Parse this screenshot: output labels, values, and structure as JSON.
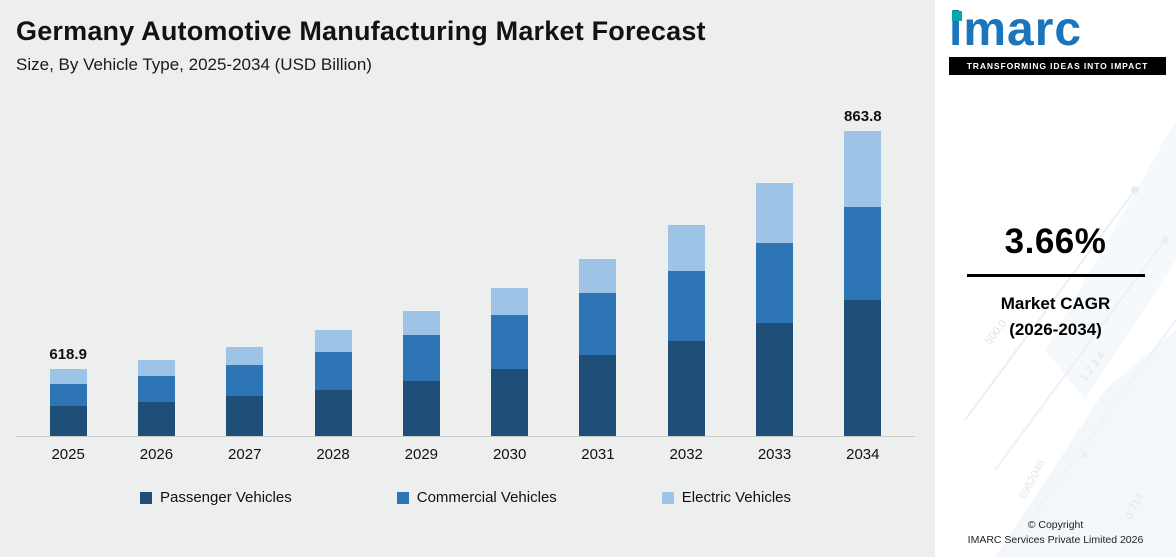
{
  "header": {
    "title": "Germany Automotive Manufacturing Market Forecast",
    "subtitle": "Size, By Vehicle Type, 2025-2034 (USD Billion)"
  },
  "chart_data": {
    "type": "bar",
    "stacked": true,
    "title": "Germany Automotive Manufacturing Market Forecast",
    "subtitle": "Size, By Vehicle Type, 2025-2034 (USD Billion)",
    "units": "USD Billion",
    "categories": [
      "2025",
      "2026",
      "2027",
      "2028",
      "2029",
      "2030",
      "2031",
      "2032",
      "2033",
      "2034"
    ],
    "series": [
      {
        "name": "Passenger Vehicles",
        "color": "#1F4E79",
        "relative_heights": [
          30,
          34,
          40,
          46,
          55,
          67,
          81,
          95,
          113,
          136
        ]
      },
      {
        "name": "Commercial Vehicles",
        "color": "#2E75B6",
        "relative_heights": [
          22,
          26,
          31,
          38,
          46,
          54,
          62,
          70,
          80,
          93
        ]
      },
      {
        "name": "Electric Vehicles",
        "color": "#9DC3E6",
        "relative_heights": [
          15,
          16,
          18,
          22,
          24,
          27,
          34,
          46,
          60,
          76
        ]
      }
    ],
    "data_labels": {
      "2025": "618.9",
      "2034": "863.8"
    },
    "totals_usd_billion": {
      "2025": 618.9,
      "2034": 863.8
    },
    "legend_position": "bottom",
    "axes": "hidden",
    "grid": false
  },
  "sidebar": {
    "logo_text": "imarc",
    "logo_tagline": "TRANSFORMING IDEAS INTO IMPACT",
    "cagr_value": "3.66%",
    "cagr_label_line1": "Market CAGR",
    "cagr_label_line2": "(2026-2034)",
    "copyright_line1": "© Copyright",
    "copyright_line2": "IMARC Services Private Limited 2026",
    "brand_blue": "#1B75BC",
    "brand_teal": "#00A9A7",
    "watermarks": [
      "500.0",
      "1 2 3 4",
      "6962048",
      "0.714"
    ]
  },
  "colors": {
    "panel_background": "#EDEFEE",
    "text": "#111111",
    "passenger": "#1F4E79",
    "commercial": "#2E75B6",
    "electric": "#9DC3E6"
  }
}
